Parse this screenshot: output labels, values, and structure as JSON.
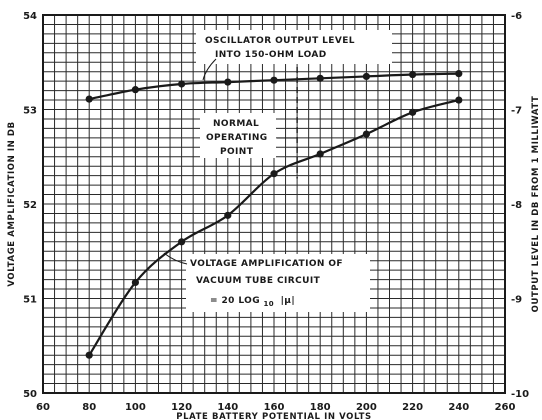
{
  "chart_data": {
    "type": "line",
    "title": "",
    "xlabel": "PLATE BATTERY POTENTIAL IN VOLTS",
    "ylabel": "VOLTAGE AMPLIFICATION IN DB",
    "y2label": "OUTPUT LEVEL IN DB FROM 1 MILLIWATT",
    "xlim": [
      60,
      260
    ],
    "ylim": [
      50,
      54
    ],
    "y2lim": [
      -10,
      -6
    ],
    "grid": true,
    "x_ticks": [
      "60",
      "80",
      "100",
      "120",
      "140",
      "160",
      "180",
      "200",
      "220",
      "240",
      "260"
    ],
    "y_ticks": [
      "50",
      "51",
      "52",
      "53",
      "54"
    ],
    "y2_ticks": [
      "-6",
      "-7",
      "-8",
      "-9",
      "-10"
    ],
    "series": [
      {
        "name": "",
        "axis": "right",
        "x": [
          80,
          100,
          120,
          140,
          160,
          180,
          200,
          220,
          240
        ],
        "y": [
          -6.89,
          -6.79,
          -6.73,
          -6.71,
          -6.69,
          -6.67,
          -6.65,
          -6.63,
          -6.62
        ]
      },
      {
        "name": "",
        "axis": "left",
        "x": [
          80,
          100,
          120,
          140,
          160,
          180,
          200,
          220,
          240
        ],
        "y": [
          50.4,
          51.17,
          51.6,
          51.88,
          52.32,
          52.53,
          52.74,
          52.97,
          53.1
        ]
      }
    ],
    "annotations": {
      "oscillator_line1": "OSCILLATOR OUTPUT LEVEL",
      "oscillator_line2": "INTO 150-OHM LOAD",
      "normal_line1": "NORMAL",
      "normal_line2": "OPERATING",
      "normal_line3": "POINT",
      "vtc_line1": "VOLTAGE AMPLIFICATION OF",
      "vtc_line2": "VACUUM TUBE CIRCUIT",
      "vtc_line3": "= 20 LOG",
      "vtc_subscript": "10",
      "vtc_line3_end": "|μ|"
    },
    "normal_operating_point_x": 170
  }
}
